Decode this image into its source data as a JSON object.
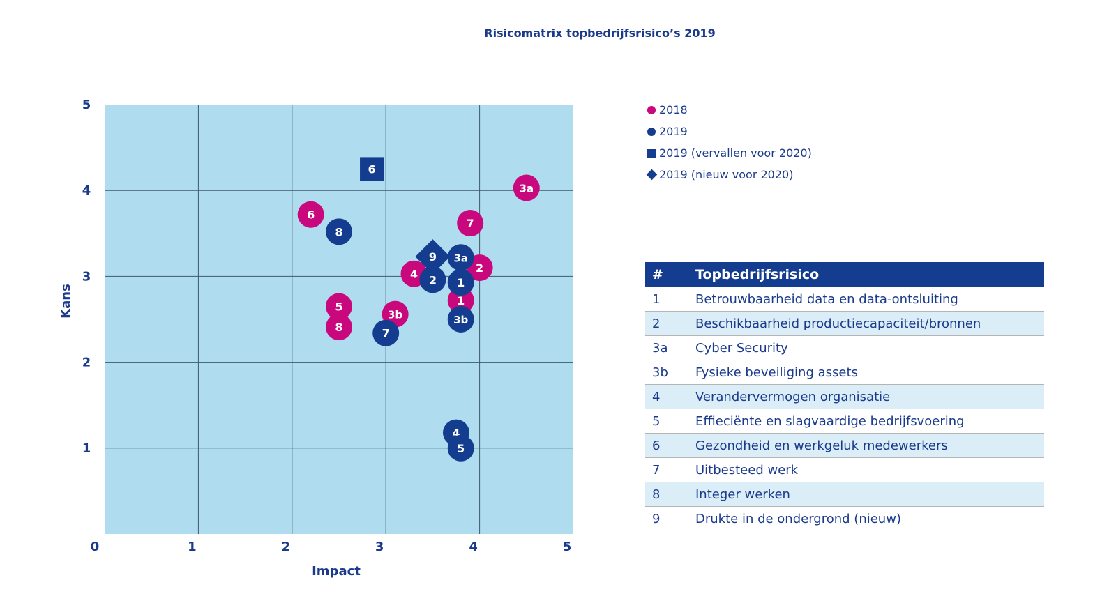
{
  "title": "Risicomatrix topbedrijfsrisico’s 2019",
  "colors": {
    "plot_background": "#b0dcf0",
    "grid": "#3d5a6a",
    "series_2018": "#c8087c",
    "series_2019": "#153d8f",
    "axis_text": "#1a3a8c"
  },
  "legend": {
    "items": [
      {
        "label": "2018",
        "marker": "circle",
        "color": "#c8087c"
      },
      {
        "label": "2019",
        "marker": "circle",
        "color": "#153d8f"
      },
      {
        "label": "2019 (vervallen voor 2020)",
        "marker": "square",
        "color": "#153d8f"
      },
      {
        "label": "2019 (nieuw voor 2020)",
        "marker": "diamond",
        "color": "#153d8f"
      }
    ]
  },
  "chart_data": {
    "type": "scatter",
    "title": "Risicomatrix topbedrijfsrisico’s 2019",
    "xlabel": "Impact",
    "ylabel": "Kans",
    "xlim": [
      0,
      5
    ],
    "ylim": [
      0,
      5
    ],
    "x_ticks": [
      "0",
      "1",
      "2",
      "3",
      "4",
      "5"
    ],
    "y_ticks": [
      "1",
      "2",
      "3",
      "4",
      "5"
    ],
    "grid": true,
    "legend_position": "top-right",
    "series": [
      {
        "name": "2018",
        "marker": "circle",
        "color": "#c8087c",
        "points": [
          {
            "label": "3a",
            "x": 4.5,
            "y": 4.03
          },
          {
            "label": "6",
            "x": 2.2,
            "y": 3.72
          },
          {
            "label": "7",
            "x": 3.9,
            "y": 3.62
          },
          {
            "label": "2",
            "x": 4.0,
            "y": 3.1
          },
          {
            "label": "4",
            "x": 3.3,
            "y": 3.03
          },
          {
            "label": "1",
            "x": 3.8,
            "y": 2.72
          },
          {
            "label": "5",
            "x": 2.5,
            "y": 2.65
          },
          {
            "label": "3b",
            "x": 3.1,
            "y": 2.56
          },
          {
            "label": "8",
            "x": 2.5,
            "y": 2.41
          }
        ]
      },
      {
        "name": "2019",
        "marker": "circle",
        "color": "#153d8f",
        "points": [
          {
            "label": "8",
            "x": 2.5,
            "y": 3.52
          },
          {
            "label": "3a",
            "x": 3.8,
            "y": 3.22
          },
          {
            "label": "2",
            "x": 3.5,
            "y": 2.96
          },
          {
            "label": "1",
            "x": 3.8,
            "y": 2.93
          },
          {
            "label": "3b",
            "x": 3.8,
            "y": 2.5
          },
          {
            "label": "7",
            "x": 3.0,
            "y": 2.34
          },
          {
            "label": "4",
            "x": 3.75,
            "y": 1.18
          },
          {
            "label": "5",
            "x": 3.8,
            "y": 1.0
          }
        ]
      },
      {
        "name": "2019 (vervallen voor 2020)",
        "marker": "square",
        "color": "#153d8f",
        "points": [
          {
            "label": "6",
            "x": 2.85,
            "y": 4.25
          }
        ]
      },
      {
        "name": "2019 (nieuw voor 2020)",
        "marker": "diamond",
        "color": "#153d8f",
        "points": [
          {
            "label": "9",
            "x": 3.5,
            "y": 3.23
          }
        ]
      }
    ]
  },
  "table": {
    "headers": [
      "#",
      "Topbedrijfsrisico"
    ],
    "rows": [
      {
        "num": "1",
        "label": "Betrouwbaarheid data en data-ontsluiting"
      },
      {
        "num": "2",
        "label": "Beschikbaarheid productiecapaciteit/bronnen"
      },
      {
        "num": "3a",
        "label": "Cyber Security"
      },
      {
        "num": "3b",
        "label": "Fysieke beveiliging assets"
      },
      {
        "num": "4",
        "label": "Verandervermogen organisatie"
      },
      {
        "num": "5",
        "label": "Effieciënte en slagvaardige bedrijfsvoering"
      },
      {
        "num": "6",
        "label": "Gezondheid en werkgeluk medewerkers"
      },
      {
        "num": "7",
        "label": "Uitbesteed werk"
      },
      {
        "num": "8",
        "label": "Integer werken"
      },
      {
        "num": "9",
        "label": "Drukte in de ondergrond (nieuw)"
      }
    ]
  }
}
